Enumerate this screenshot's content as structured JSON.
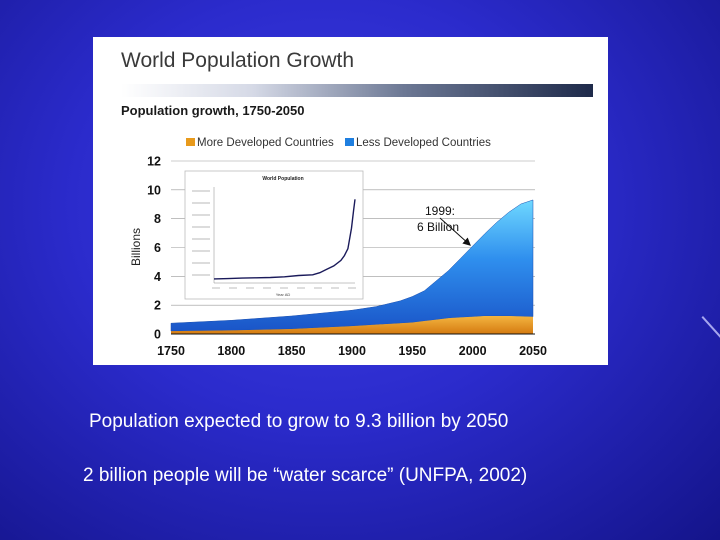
{
  "figure": {
    "title": "World Population Growth",
    "subtitle": "Population growth, 1750-2050"
  },
  "colors": {
    "more_developed": "#e89a1c",
    "less_developed": "#1f7fe0",
    "inset_line": "#1a1a5a"
  },
  "chart_data": [
    {
      "type": "area",
      "title": "Population growth, 1750-2050",
      "ylabel": "Billions",
      "xlim": [
        1750,
        2050
      ],
      "ylim": [
        0,
        12
      ],
      "x_ticks": [
        1750,
        1800,
        1850,
        1900,
        1950,
        2000,
        2050
      ],
      "y_ticks": [
        0,
        2,
        4,
        6,
        8,
        10,
        12
      ],
      "grid": true,
      "legend": "top",
      "stacked": true,
      "x": [
        1750,
        1800,
        1850,
        1900,
        1920,
        1940,
        1950,
        1960,
        1970,
        1980,
        1990,
        2000,
        2010,
        2020,
        2030,
        2040,
        2050
      ],
      "series": [
        {
          "name": "More Developed Countries",
          "values": [
            0.2,
            0.25,
            0.35,
            0.55,
            0.65,
            0.75,
            0.8,
            0.9,
            1.0,
            1.1,
            1.15,
            1.2,
            1.25,
            1.25,
            1.25,
            1.22,
            1.2
          ]
        },
        {
          "name": "Less Developed Countries",
          "values": [
            0.55,
            0.7,
            0.9,
            1.1,
            1.25,
            1.55,
            1.8,
            2.1,
            2.7,
            3.3,
            4.1,
            4.9,
            5.7,
            6.5,
            7.2,
            7.8,
            8.1
          ]
        }
      ],
      "annotations": [
        {
          "line1": "1999:",
          "line2": "6 Billion",
          "x": 1999,
          "y": 6
        }
      ]
    },
    {
      "type": "line",
      "title": "World Population",
      "xlabel": "Year AD",
      "x": [
        1000,
        1100,
        1200,
        1300,
        1400,
        1500,
        1600,
        1700,
        1750,
        1800,
        1850,
        1900,
        1925,
        1950,
        1975,
        1990,
        2000
      ],
      "values": [
        0.3,
        0.32,
        0.36,
        0.38,
        0.4,
        0.45,
        0.55,
        0.6,
        0.75,
        1.0,
        1.25,
        1.65,
        2.0,
        2.5,
        4.0,
        5.3,
        6.1
      ]
    }
  ],
  "captions": {
    "line1": "Population expected to grow to 9.3 billion by 2050",
    "line2": "2 billion people will be “water scarce” (UNFPA, 2002)"
  }
}
